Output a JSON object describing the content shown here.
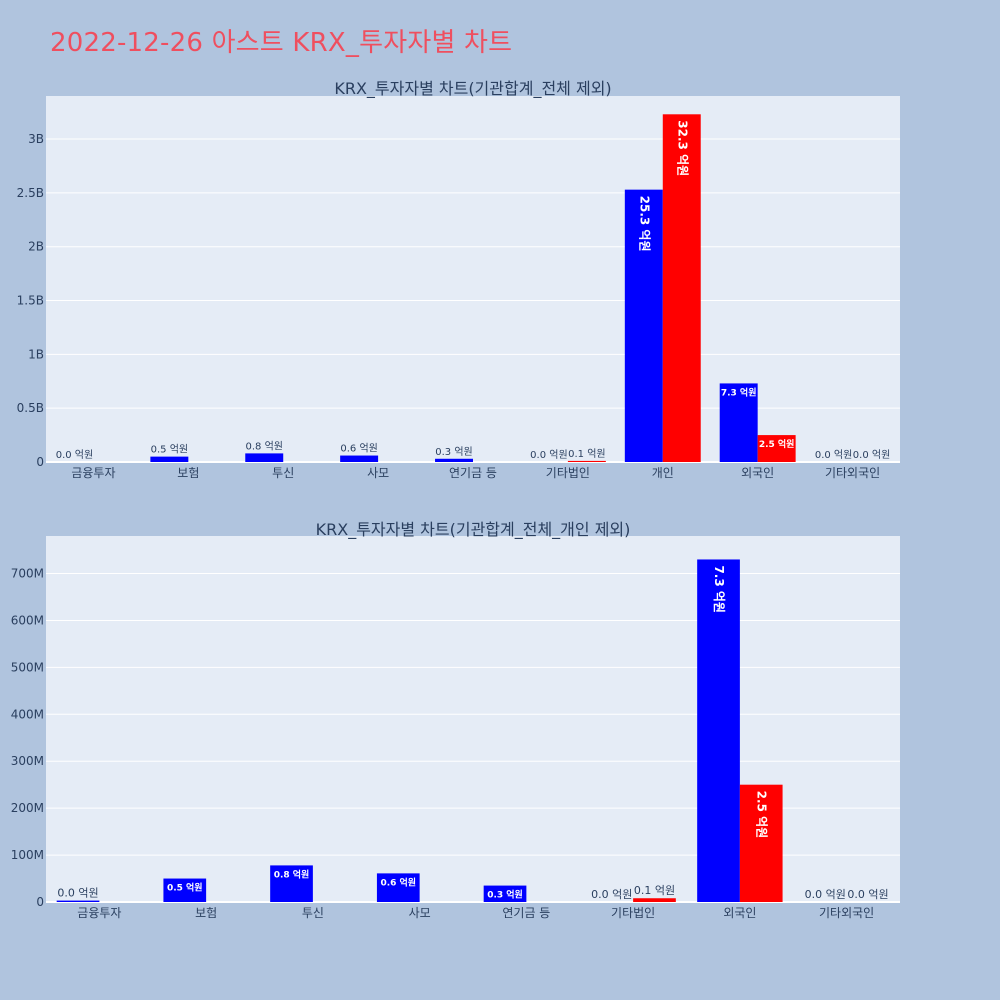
{
  "page": {
    "title": "2022-12-26 아스트 KRX_투자자별 차트"
  },
  "colors": {
    "background": "#b0c4de",
    "plot_bg": "#e5ecf6",
    "title": "#ef4f5f",
    "series_a": "#0000ff",
    "series_b": "#ff0000"
  },
  "chart_data": [
    {
      "type": "bar",
      "title": "KRX_투자자별 차트(기관합계_전체 제외)",
      "xlabel": "",
      "ylabel": "",
      "ylim": [
        0,
        3400000000
      ],
      "yticks": [
        {
          "v": 0,
          "label": "0"
        },
        {
          "v": 500000000,
          "label": "0.5B"
        },
        {
          "v": 1000000000,
          "label": "1B"
        },
        {
          "v": 1500000000,
          "label": "1.5B"
        },
        {
          "v": 2000000000,
          "label": "2B"
        },
        {
          "v": 2500000000,
          "label": "2.5B"
        },
        {
          "v": 3000000000,
          "label": "3B"
        }
      ],
      "categories": [
        "금융투자",
        "보험",
        "투신",
        "사모",
        "연기금 등",
        "기타법인",
        "개인",
        "외국인",
        "기타외국인"
      ],
      "series": [
        {
          "color": "#0000ff",
          "values": [
            0,
            50000000,
            80000000,
            60000000,
            30000000,
            0,
            2530000000,
            730000000,
            0
          ],
          "labels": [
            "0.0 억원",
            "0.5 억원",
            "0.8 억원",
            "0.6 억원",
            "0.3 억원",
            "0.0 억원",
            "25.3 억원",
            "7.3 억원",
            "0.0 억원"
          ]
        },
        {
          "color": "#ff0000",
          "values": [
            0,
            0,
            0,
            0,
            0,
            10000000,
            3230000000,
            250000000,
            0
          ],
          "labels": [
            "",
            "",
            "",
            "",
            "",
            "0.1 억원",
            "32.3 억원",
            "2.5 억원",
            "0.0 억원"
          ]
        }
      ]
    },
    {
      "type": "bar",
      "title": "KRX_투자자별 차트(기관합계_전체_개인 제외)",
      "xlabel": "",
      "ylabel": "",
      "ylim": [
        0,
        780000000
      ],
      "yticks": [
        {
          "v": 0,
          "label": "0"
        },
        {
          "v": 100000000,
          "label": "100M"
        },
        {
          "v": 200000000,
          "label": "200M"
        },
        {
          "v": 300000000,
          "label": "300M"
        },
        {
          "v": 400000000,
          "label": "400M"
        },
        {
          "v": 500000000,
          "label": "500M"
        },
        {
          "v": 600000000,
          "label": "600M"
        },
        {
          "v": 700000000,
          "label": "700M"
        }
      ],
      "categories": [
        "금융투자",
        "보험",
        "투신",
        "사모",
        "연기금 등",
        "기타법인",
        "외국인",
        "기타외국인"
      ],
      "series": [
        {
          "color": "#0000ff",
          "values": [
            3000000,
            50000000,
            78000000,
            61000000,
            35000000,
            0,
            730000000,
            0
          ],
          "labels": [
            "0.0 억원",
            "0.5 억원",
            "0.8 억원",
            "0.6 억원",
            "0.3 억원",
            "0.0 억원",
            "7.3 억원",
            "0.0 억원"
          ]
        },
        {
          "color": "#ff0000",
          "values": [
            0,
            0,
            0,
            0,
            0,
            8000000,
            250000000,
            0
          ],
          "labels": [
            "",
            "",
            "",
            "",
            "",
            "0.1 억원",
            "2.5 억원",
            "0.0 억원"
          ]
        }
      ]
    }
  ]
}
